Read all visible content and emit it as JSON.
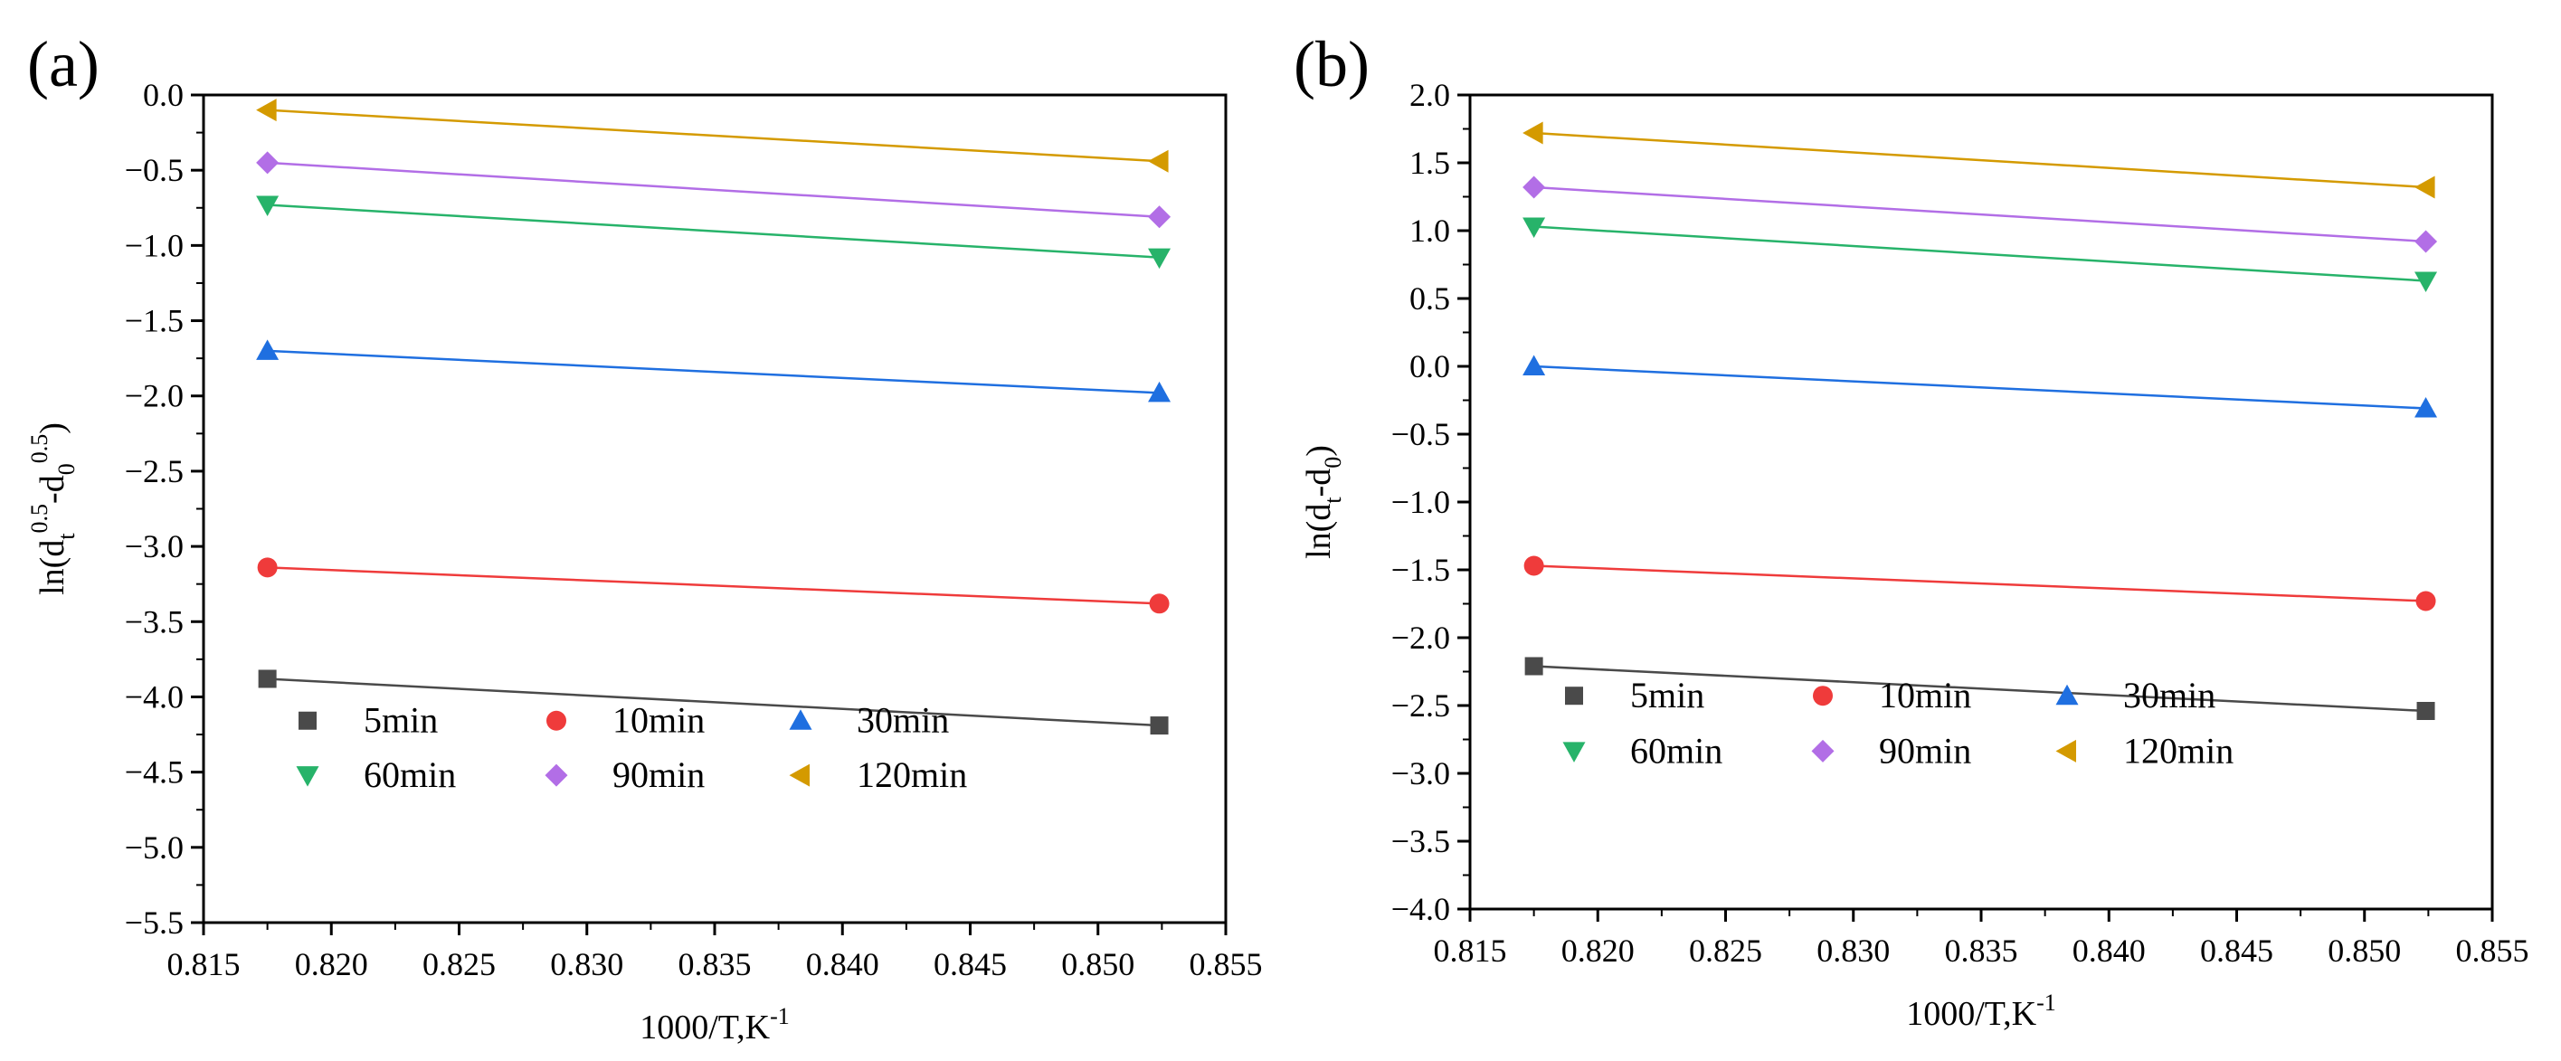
{
  "colors": {
    "5min": "#4a4a4a",
    "10min": "#ef3b3b",
    "30min": "#1f6fe0",
    "60min": "#27b36a",
    "90min": "#b26ee6",
    "120min": "#d49a00"
  },
  "chart_data": [
    {
      "panel_label": "(a)",
      "type": "scatter",
      "xlabel_main": "1000/T,K",
      "xlabel_sup": "-1",
      "ylabel_prefix": "ln(d",
      "ylabel_sub1": "t",
      "ylabel_sup1": "0.5",
      "ylabel_mid": "-d",
      "ylabel_sub2": "0",
      "ylabel_sup2": "0.5",
      "ylabel_suffix": ")",
      "xlim": [
        0.815,
        0.855
      ],
      "ylim": [
        -5.5,
        0.0
      ],
      "xticks": [
        "0.815",
        "0.820",
        "0.825",
        "0.830",
        "0.835",
        "0.840",
        "0.845",
        "0.850",
        "0.855"
      ],
      "yticks": [
        "0.0",
        "-0.5",
        "-1.0",
        "-1.5",
        "-2.0",
        "-2.5",
        "-3.0",
        "-3.5",
        "-4.0",
        "-4.5",
        "-5.0",
        "-5.5"
      ],
      "x": [
        0.8175,
        0.8524
      ],
      "series": [
        {
          "name": "5min",
          "marker": "square",
          "y": [
            -3.88,
            -4.19
          ]
        },
        {
          "name": "10min",
          "marker": "circle",
          "y": [
            -3.14,
            -3.38
          ]
        },
        {
          "name": "30min",
          "marker": "triangle-up",
          "y": [
            -1.7,
            -1.98
          ]
        },
        {
          "name": "60min",
          "marker": "triangle-down",
          "y": [
            -0.73,
            -1.08
          ]
        },
        {
          "name": "90min",
          "marker": "diamond",
          "y": [
            -0.45,
            -0.81
          ]
        },
        {
          "name": "120min",
          "marker": "triangle-left",
          "y": [
            -0.1,
            -0.44
          ]
        }
      ],
      "legend": "lower-left"
    },
    {
      "panel_label": "(b)",
      "type": "scatter",
      "xlabel_main": "1000/T,K",
      "xlabel_sup": "-1",
      "ylabel_prefix": "ln(d",
      "ylabel_sub1": "t",
      "ylabel_mid": "-d",
      "ylabel_sub2": "0",
      "ylabel_suffix": ")",
      "xlim": [
        0.815,
        0.855
      ],
      "ylim": [
        -4.0,
        2.0
      ],
      "xticks": [
        "0.815",
        "0.820",
        "0.825",
        "0.830",
        "0.835",
        "0.840",
        "0.845",
        "0.850",
        "0.855"
      ],
      "yticks": [
        "2.0",
        "1.5",
        "1.0",
        "0.5",
        "0.0",
        "-0.5",
        "-1.0",
        "-1.5",
        "-2.0",
        "-2.5",
        "-3.0",
        "-3.5",
        "-4.0"
      ],
      "x": [
        0.8175,
        0.8524
      ],
      "series": [
        {
          "name": "5min",
          "marker": "square",
          "y": [
            -2.21,
            -2.54
          ]
        },
        {
          "name": "10min",
          "marker": "circle",
          "y": [
            -1.47,
            -1.73
          ]
        },
        {
          "name": "30min",
          "marker": "triangle-up",
          "y": [
            0.0,
            -0.31
          ]
        },
        {
          "name": "60min",
          "marker": "triangle-down",
          "y": [
            1.03,
            0.63
          ]
        },
        {
          "name": "90min",
          "marker": "diamond",
          "y": [
            1.32,
            0.92
          ]
        },
        {
          "name": "120min",
          "marker": "triangle-left",
          "y": [
            1.72,
            1.32
          ]
        }
      ],
      "legend": "lower-left"
    }
  ]
}
